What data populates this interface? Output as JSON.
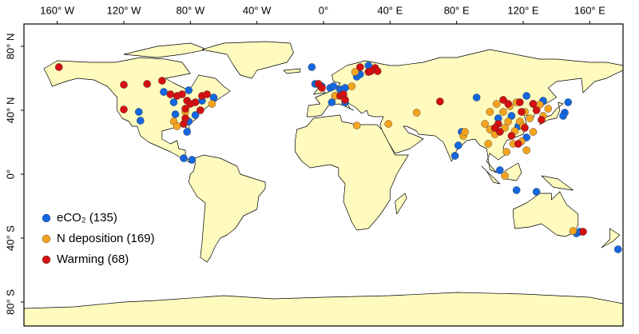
{
  "chart_data": {
    "type": "map",
    "xlim": [
      -180,
      180
    ],
    "ylim": [
      -95,
      94
    ],
    "xticks": [
      {
        "value": -160,
        "label": "160° W"
      },
      {
        "value": -120,
        "label": "120° W"
      },
      {
        "value": -80,
        "label": "80° W"
      },
      {
        "value": -40,
        "label": "40° W"
      },
      {
        "value": 0,
        "label": "0°"
      },
      {
        "value": 40,
        "label": "40° E"
      },
      {
        "value": 80,
        "label": "80° E"
      },
      {
        "value": 120,
        "label": "120° E"
      },
      {
        "value": 160,
        "label": "160° E"
      }
    ],
    "yticks": [
      {
        "value": 80,
        "label": "80° N"
      },
      {
        "value": 40,
        "label": "40° N"
      },
      {
        "value": 0,
        "label": "0°"
      },
      {
        "value": -40,
        "label": "40° S"
      },
      {
        "value": -80,
        "label": "80° S"
      }
    ],
    "legend": "lower left",
    "series": [
      {
        "name": "eCO₂ (135)",
        "color": "#1467e0",
        "x": [
          -96,
          -81,
          -73,
          -66,
          -90,
          -89,
          -111,
          -110,
          -77,
          -81,
          -84,
          -79,
          -82,
          -7,
          -5,
          -1,
          4,
          6,
          10,
          7,
          13,
          5,
          13,
          27,
          20,
          92,
          83,
          81,
          79,
          105,
          113,
          117,
          122,
          106,
          116,
          128,
          145,
          144,
          147,
          132,
          126,
          152,
          177,
          154,
          122,
          22
        ],
        "values": [
          51.5,
          52.5,
          46,
          48,
          45,
          37.5,
          39,
          33.5,
          37,
          33,
          10,
          9,
          26.5,
          67,
          56.5,
          55,
          54,
          55,
          53,
          49,
          54,
          45,
          45,
          68,
          61,
          48,
          26.5,
          18,
          11.5,
          35,
          36.5,
          30,
          23,
          2.5,
          -10,
          -11,
          38.5,
          36.5,
          45,
          46,
          44,
          -37,
          -47,
          -36,
          49,
          62.5
        ]
      },
      {
        "name": "N deposition (169)",
        "color": "#f5a31f",
        "x": [
          19,
          7,
          20,
          39,
          56,
          84,
          85,
          97,
          100,
          103,
          109,
          111,
          115,
          118,
          120,
          124,
          121,
          116,
          112,
          108,
          100,
          114,
          126,
          132,
          130,
          109,
          110,
          119,
          99,
          -90,
          -83,
          -88,
          -67,
          17,
          104,
          122,
          135,
          150
        ],
        "values": [
          64,
          49,
          30.5,
          31.5,
          38.5,
          24,
          26.5,
          31.5,
          28,
          25,
          29,
          33,
          27,
          33,
          30,
          35,
          39,
          45,
          42.5,
          39,
          39,
          19,
          26.5,
          36.5,
          43.5,
          -1,
          14,
          20.5,
          19,
          33,
          39,
          30,
          44,
          55,
          44,
          15,
          41,
          -35.5
        ]
      },
      {
        "name": "Warming (68)",
        "color": "#d40f0f",
        "x": [
          -159,
          -120,
          -106,
          -97,
          -92,
          -88,
          -85,
          -82,
          -77,
          -73,
          -70,
          -74,
          -83,
          -80,
          -83,
          -84,
          -120,
          -3,
          -1,
          10,
          12,
          13,
          22,
          31,
          27,
          28.5,
          32.5,
          70,
          108,
          118,
          119,
          126,
          105,
          106,
          113,
          117,
          121,
          128,
          131,
          156,
          111,
          103
        ],
        "values": [
          67,
          56,
          56.5,
          58.5,
          50,
          49,
          50,
          46,
          45,
          49,
          50,
          40,
          41,
          44,
          35,
          31.5,
          40.5,
          56.5,
          54,
          49,
          50,
          46.5,
          67,
          66.5,
          64,
          64.5,
          64.5,
          45.5,
          46.5,
          45,
          39,
          44,
          31.5,
          26.5,
          24,
          19,
          29,
          40,
          34,
          -36,
          44,
          29
        ]
      }
    ]
  }
}
